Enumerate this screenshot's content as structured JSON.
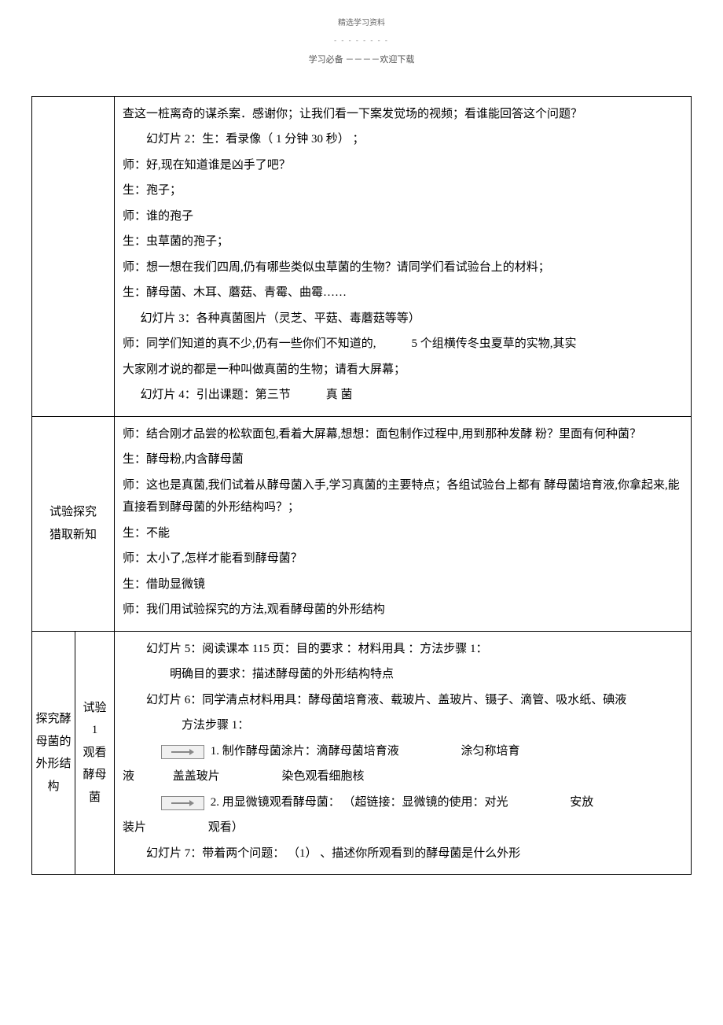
{
  "header": {
    "small": "精选学习资料",
    "dashes": "- - - - - - - -",
    "line": "学习必备 －－－－欢迎下载"
  },
  "row1": {
    "p1": "查这一桩离奇的谋杀案．感谢你；让我们看一下案发觉场的视频；看谁能回答这个问题？",
    "p2": "幻灯片 2：生：看录像（ 1 分钟 30 秒） ；",
    "p3": "师：好,现在知道谁是凶手了吧？",
    "p4": "生：孢子；",
    "p5": "师：谁的孢子",
    "p6": "生：虫草菌的孢子；",
    "p7": "师：想一想在我们四周,仍有哪些类似虫草菌的生物？请同学们看试验台上的材料；",
    "p8": "生：酵母菌、木耳、蘑菇、青霉、曲霉……",
    "p9": "幻灯片 3：各种真菌图片（灵芝、平菇、毒蘑菇等等）",
    "p10a": "师：同学们知道的真不少,仍有一些你们不知道的,",
    "p10b": "5 个组横传冬虫夏草的实物,其实",
    "p11": "大家刚才说的都是一种叫做真菌的生物；请看大屏幕；",
    "p12a": "幻灯片 4：引出课题：第三节",
    "p12b": "真 菌"
  },
  "row2": {
    "label1": "试验探究",
    "label2": "猎取新知",
    "p1": "师：结合刚才品尝的松软面包,看着大屏幕,想想：面包制作过程中,用到那种发酵 粉？里面有何种菌？",
    "p2": "生：酵母粉,内含酵母菌",
    "p3": "师：这也是真菌,我们试着从酵母菌入手,学习真菌的主要特点；各组试验台上都有 酵母菌培育液,你拿起来,能直接看到酵母菌的外形结构吗？；",
    "p4": "生：不能",
    "p5": "师：太小了,怎样才能看到酵母菌？",
    "p6": "生：借助显微镜",
    "p7": "师：我们用试验探究的方法,观看酵母菌的外形结构"
  },
  "row3": {
    "labelA": "探究酵母菌的外形结构",
    "labelB1": "试验 1",
    "labelB2": "观看酵母菌",
    "p1": "幻灯片 5：阅读课本 115 页：目的要求 ：材料用具 ：方法步骤 1：",
    "p2": "明确目的要求：描述酵母菌的外形结构特点",
    "p3": "幻灯片 6：同学清点材料用具：酵母菌培育液、载玻片、盖玻片、镊子、滴管、吸水纸、碘液",
    "p4": "方法步骤 1：",
    "p5a": "1. 制作酵母菌涂片：滴酵母菌培育液",
    "p5b": "涂匀称培育",
    "p5c": "液",
    "p5d": "盖盖玻片",
    "p5e": "染色观看细胞核",
    "p6a": "2. 用显微镜观看酵母菌： （超链接：显微镜的使用：对光",
    "p6b": "安放",
    "p6c": "装片",
    "p6d": "观看）",
    "p7": "幻灯片 7：带着两个问题： （1） 、描述你所观看到的酵母菌是什么外形"
  }
}
